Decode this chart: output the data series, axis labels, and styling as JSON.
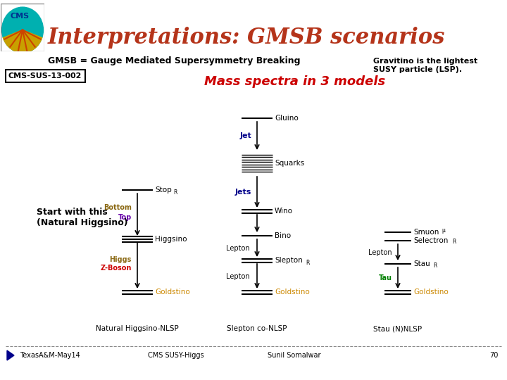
{
  "title": "Interpretations: GMSB scenarios",
  "title_color": "#b5341a",
  "subtitle1": "GMSB = Gauge Mediated Supersymmetry Breaking",
  "subtitle2_left": "Mass spectra in 3 models",
  "subtitle2_right": "Gravitino is the lightest\nSUSY particle (LSP).",
  "cms_label": "CMS-SUS-13-002",
  "bg_color": "#ffffff",
  "footer_texts": [
    "TexasA&M-May14",
    "CMS SUSY-Higgs",
    "Sunil Somalwar",
    "70"
  ],
  "model_labels": [
    "Natural Higgsino-NLSP",
    "Slepton co-NLSP",
    "Stau (N)NLSP"
  ],
  "bottom_color": "#cc8800",
  "top_color": "#800080",
  "higgs_color": "#cc8800",
  "zboson_color": "#cc0000",
  "jet_color": "#00008b",
  "tau_color": "#008000"
}
